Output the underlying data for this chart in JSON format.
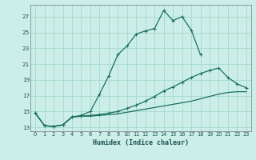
{
  "xlabel": "Humidex (Indice chaleur)",
  "bg_color": "#cceee8",
  "grid_color": "#aaddcc",
  "line_color": "#1a7060",
  "xlim": [
    -0.5,
    23.5
  ],
  "ylim": [
    12.5,
    28.5
  ],
  "xticks": [
    0,
    1,
    2,
    3,
    4,
    5,
    6,
    7,
    8,
    9,
    10,
    11,
    12,
    13,
    14,
    15,
    16,
    17,
    18,
    19,
    20,
    21,
    22,
    23
  ],
  "yticks": [
    13,
    15,
    17,
    19,
    21,
    23,
    25,
    27
  ],
  "line1_x": [
    0,
    1,
    2,
    3,
    4,
    5,
    6,
    7,
    8,
    9,
    10,
    11,
    12,
    13,
    14,
    15,
    16,
    17,
    18
  ],
  "line1_y": [
    14.8,
    13.2,
    13.1,
    13.3,
    14.3,
    14.5,
    15.0,
    17.2,
    19.5,
    22.2,
    23.3,
    24.8,
    25.2,
    25.5,
    27.8,
    26.5,
    27.0,
    25.3,
    22.2
  ],
  "line2_full_x": [
    0,
    1,
    2,
    3,
    4,
    5,
    6,
    7,
    8,
    9,
    10,
    11,
    12,
    13,
    14,
    15,
    16,
    17,
    18,
    19,
    20,
    21,
    22,
    23
  ],
  "line2_full_y": [
    14.8,
    13.2,
    13.1,
    13.3,
    14.3,
    14.4,
    14.5,
    14.6,
    14.8,
    15.0,
    15.4,
    15.8,
    16.3,
    16.9,
    17.6,
    18.1,
    18.7,
    19.3,
    19.8,
    20.2,
    20.5,
    19.3,
    18.5,
    18.0
  ],
  "line3_full_x": [
    0,
    1,
    2,
    3,
    4,
    5,
    6,
    7,
    8,
    9,
    10,
    11,
    12,
    13,
    14,
    15,
    16,
    17,
    18,
    19,
    20,
    21,
    22,
    23
  ],
  "line3_full_y": [
    14.8,
    13.2,
    13.1,
    13.3,
    14.3,
    14.4,
    14.4,
    14.5,
    14.6,
    14.7,
    14.9,
    15.1,
    15.3,
    15.5,
    15.7,
    15.9,
    16.1,
    16.3,
    16.6,
    16.9,
    17.2,
    17.4,
    17.5,
    17.5
  ]
}
